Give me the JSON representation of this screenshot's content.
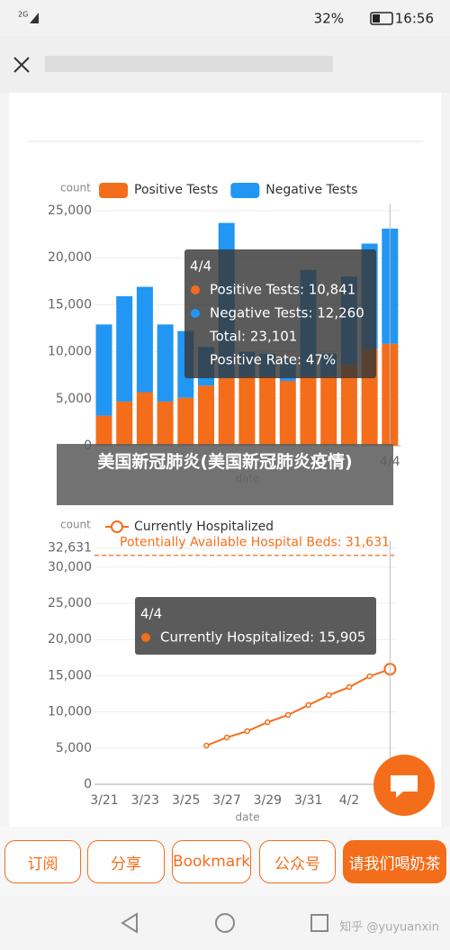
{
  "status_bar": {
    "signal": "2G",
    "battery": "32%",
    "time": "16:56"
  },
  "chart_data": [
    {
      "type": "bar",
      "stacked": true,
      "y_label": "count",
      "x_label": "date",
      "categories": [
        null,
        null,
        null,
        null,
        null,
        null,
        null,
        null,
        null,
        null,
        null,
        null,
        null,
        null,
        "4/4"
      ],
      "series": [
        {
          "name": "Positive Tests",
          "color": "#f46d1b",
          "values": [
            3200,
            4700,
            5700,
            4700,
            5100,
            6400,
            7200,
            7400,
            7400,
            6900,
            7400,
            7400,
            8600,
            10300,
            10841
          ]
        },
        {
          "name": "Negative Tests",
          "color": "#2196f3",
          "values": [
            9700,
            11200,
            11200,
            8200,
            7100,
            4100,
            16500,
            2600,
            2400,
            2300,
            11300,
            2400,
            9400,
            11200,
            12260
          ]
        }
      ],
      "ylim": [
        0,
        25000
      ],
      "yticks": [
        0,
        {
          "value": 5000,
          "label": "5,000"
        },
        {
          "value": 10000,
          "label": "10,000"
        },
        {
          "value": 15000,
          "label": "15,000"
        },
        {
          "value": 20000,
          "label": "20,000"
        },
        {
          "value": 25000,
          "label": "25,000"
        }
      ],
      "tooltip": {
        "title": "4/4",
        "lines": [
          "Positive Tests: 10,841",
          "Negative Tests: 12,260",
          "Total: 23,101",
          "Positive Rate: 47%"
        ]
      }
    },
    {
      "type": "line",
      "y_label": "count",
      "x_label": "date",
      "categories": [
        "3/21",
        null,
        "3/23",
        null,
        "3/25",
        null,
        "3/27",
        null,
        "3/29",
        null,
        "3/31",
        null,
        "4/2",
        null,
        null
      ],
      "series": [
        {
          "name": "Currently Hospitalized",
          "color": "#f46d1b",
          "values": [
            null,
            null,
            null,
            null,
            null,
            5350,
            6470,
            7340,
            8580,
            9580,
            10950,
            12310,
            13430,
            14930,
            15905
          ]
        }
      ],
      "reference_line": {
        "value": 31631,
        "label": "Potentially Available Hospital Beds: 31,631"
      },
      "ylim": [
        0,
        32631
      ],
      "yticks": [
        0,
        {
          "value": 5000,
          "label": "5,000"
        },
        {
          "value": 10000,
          "label": "10,000"
        },
        {
          "value": 15000,
          "label": "15,000"
        },
        {
          "value": 20000,
          "label": "20,000"
        },
        {
          "value": 25000,
          "label": "25,000"
        },
        {
          "value": 30000,
          "label": "30,000"
        },
        {
          "value": 32631,
          "label": "32,631"
        }
      ],
      "tooltip": {
        "title": "4/4",
        "lines": [
          "Currently Hospitalized: 15,905"
        ]
      }
    }
  ],
  "caption": "美国新冠肺炎(美国新冠肺炎疫情)",
  "buttons": [
    "订阅",
    "分享",
    "Bookmark",
    "公众号",
    "请我们喝奶茶"
  ],
  "watermark": "知乎 @yuyuanxin"
}
